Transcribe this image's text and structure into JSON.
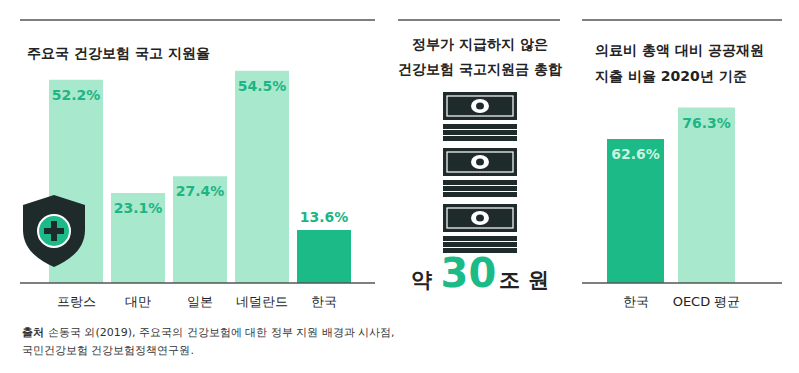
{
  "chart_data": [
    {
      "type": "bar",
      "title": "주요국 건강보험 국고 지원율",
      "categories": [
        "프랑스",
        "대만",
        "일본",
        "네덜란드",
        "한국"
      ],
      "values": [
        52.2,
        23.1,
        27.4,
        54.5,
        13.6
      ],
      "value_labels": [
        "52.2%",
        "23.1%",
        "27.4%",
        "54.5%",
        "13.6%"
      ],
      "colors": [
        "#a8e8cd",
        "#a8e8cd",
        "#a8e8cd",
        "#a8e8cd",
        "#1cba86"
      ],
      "ylim": [
        0,
        56
      ],
      "grid": false,
      "data_labels": true,
      "tick_labels": "x"
    },
    {
      "type": "bar",
      "title": [
        "의료비 총액 대비 공공재원",
        "지출 비율 2020년 기준"
      ],
      "categories": [
        "한국",
        "OECD 평균"
      ],
      "values": [
        62.6,
        76.3
      ],
      "value_labels": [
        "62.6%",
        "76.3%"
      ],
      "colors": [
        "#1cba86",
        "#a8e8cd"
      ],
      "ylim": [
        0,
        90
      ],
      "grid": false,
      "data_labels": true,
      "tick_labels": "x"
    }
  ],
  "callout": {
    "title": [
      "정부가 지급하지 않은",
      "건강보험 국고지원금 총합"
    ],
    "prefix": "약",
    "value": 30,
    "unit": "조 원"
  },
  "source": {
    "label": "출처",
    "lines": [
      "손동국 외(2019), 주요국의 건강보험에 대한 정부 지원 배경과 시사점,",
      "국민건강보험 건강보험정책연구원."
    ]
  }
}
